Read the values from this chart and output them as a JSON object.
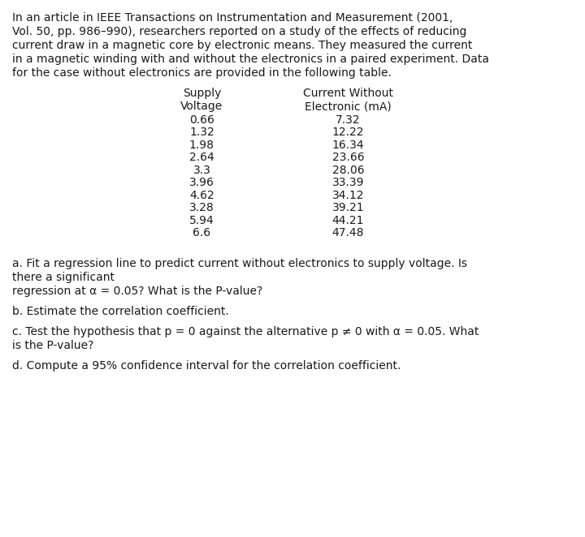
{
  "intro_text": "In an article in IEEE Transactions on Instrumentation and Measurement (2001,\nVol. 50, pp. 986–990), researchers reported on a study of the effects of reducing\ncurrent draw in a magnetic core by electronic means. They measured the current\nin a magnetic winding with and without the electronics in a paired experiment. Data\nfor the case without electronics are provided in the following table.",
  "col1_header_line1": "Supply",
  "col1_header_line2": "Voltage",
  "col2_header_line1": "Current Without",
  "col2_header_line2": "Electronic (mA)",
  "table_data": [
    [
      "0.66",
      "7.32"
    ],
    [
      "1.32",
      "12.22"
    ],
    [
      "1.98",
      "16.34"
    ],
    [
      "2.64",
      "23.66"
    ],
    [
      "3.3",
      "28.06"
    ],
    [
      "3.96",
      "33.39"
    ],
    [
      "4.62",
      "34.12"
    ],
    [
      "3.28",
      "39.21"
    ],
    [
      "5.94",
      "44.21"
    ],
    [
      "6.6",
      "47.48"
    ]
  ],
  "questions": [
    {
      "text": "a. Fit a regression line to predict current without electronics to supply voltage. Is\nthere a significant",
      "extra_gap_after": false
    },
    {
      "text": "regression at α = 0.05? What is the P-value?",
      "extra_gap_after": true
    },
    {
      "text": "b. Estimate the correlation coefficient.",
      "extra_gap_after": true
    },
    {
      "text": "c. Test the hypothesis that p = 0 against the alternative p ≠ 0 with α = 0.05. What\nis the P-value?",
      "extra_gap_after": true
    },
    {
      "text": "d. Compute a 95% confidence interval for the correlation coefficient.",
      "extra_gap_after": false
    }
  ],
  "bg_color": "#ffffff",
  "text_color": "#1a1a1a",
  "font_size": 10.0,
  "table_font_size": 10.0,
  "fig_width": 7.2,
  "fig_height": 6.62,
  "dpi": 100
}
